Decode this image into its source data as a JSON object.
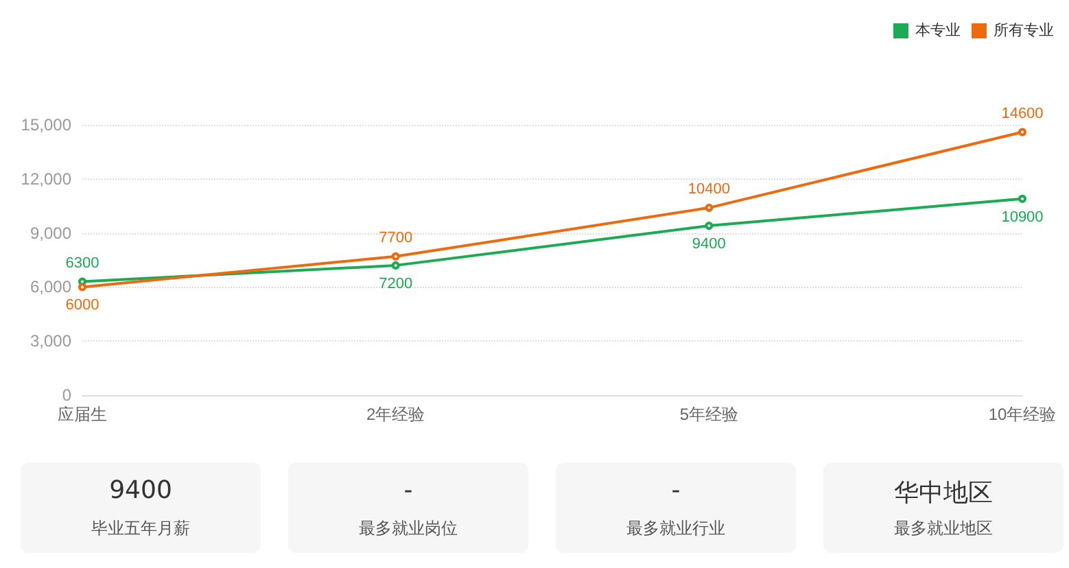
{
  "chart_data": {
    "type": "line",
    "categories": [
      "应届生",
      "2年经验",
      "5年经验",
      "10年经验"
    ],
    "series": [
      {
        "name": "本专业",
        "color": "#1daa55",
        "values": [
          6300,
          7200,
          9400,
          10900
        ]
      },
      {
        "name": "所有专业",
        "color": "#ec6a10",
        "values": [
          6000,
          7700,
          10400,
          14600
        ]
      }
    ],
    "ylim": [
      0,
      15000
    ],
    "yticks": [
      0,
      {
        "value": 3000,
        "label": "3,000"
      },
      {
        "value": 6000,
        "label": "6,000"
      },
      {
        "value": 9000,
        "label": "9,000"
      },
      {
        "value": 12000,
        "label": "12,000"
      },
      {
        "value": 15000,
        "label": "15,000"
      }
    ],
    "grid": "y",
    "legend": "top right",
    "marker": "circle",
    "data_labels": true,
    "annotations": [
      "9400",
      "毕业五年月薪",
      "-",
      "最多就业岗位",
      "-",
      "最多就业行业",
      "华中地区",
      "最多就业地区"
    ]
  }
}
